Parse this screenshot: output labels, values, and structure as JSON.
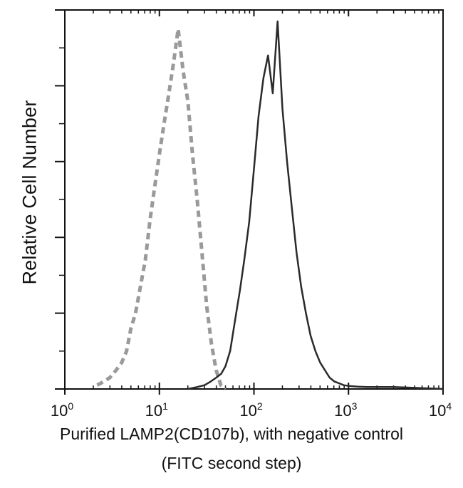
{
  "chart_data": {
    "type": "line",
    "title": "",
    "xlabel_line1": "Purified LAMP2(CD107b), with negative control",
    "xlabel_line2": "(FITC second step)",
    "ylabel": "Relative Cell Number",
    "xscale": "log",
    "xlim": [
      1,
      10000
    ],
    "ylim": [
      0,
      100
    ],
    "grid": false,
    "legend": "none",
    "x_ticks": [
      {
        "base": "10",
        "exp": "0",
        "value": 1
      },
      {
        "base": "10",
        "exp": "1",
        "value": 10
      },
      {
        "base": "10",
        "exp": "2",
        "value": 100
      },
      {
        "base": "10",
        "exp": "3",
        "value": 1000
      },
      {
        "base": "10",
        "exp": "4",
        "value": 10000
      }
    ],
    "y_major_ticks": [
      0,
      20,
      40,
      60,
      80,
      100
    ],
    "series": [
      {
        "style": "dashed",
        "color": "#9a9a9a",
        "x": [
          2.2,
          2.6,
          3.0,
          3.5,
          4.0,
          4.5,
          5.0,
          5.6,
          6.3,
          7.1,
          8.0,
          9.0,
          10.0,
          11.2,
          12.6,
          14.1,
          15.8,
          17.8,
          20.0,
          22.4,
          25.1,
          28.2,
          31.6,
          35.5,
          39.8,
          44.7,
          50.1
        ],
        "y": [
          1,
          2,
          3,
          5,
          7,
          10,
          16,
          20,
          27,
          34,
          45,
          54,
          62,
          70,
          78,
          86,
          95,
          84,
          76,
          62,
          50,
          36,
          22,
          12,
          5,
          1,
          0
        ]
      },
      {
        "style": "solid",
        "color": "#2a2a2a",
        "x": [
          20,
          25,
          30,
          35,
          40,
          45,
          50,
          56,
          63,
          71,
          79,
          89,
          100,
          112,
          126,
          141,
          158,
          178,
          200,
          224,
          251,
          282,
          316,
          355,
          398,
          447,
          501,
          562,
          631,
          708,
          794,
          891,
          1000,
          1260,
          1585,
          2000,
          3000,
          5000,
          10000
        ],
        "y": [
          0,
          0.5,
          1,
          2,
          3,
          4,
          6,
          10,
          18,
          26,
          34,
          44,
          58,
          72,
          82,
          88,
          78,
          97,
          74,
          60,
          48,
          36,
          27,
          20,
          14,
          10,
          7,
          5,
          3,
          2,
          1.5,
          1,
          0.8,
          0.6,
          0.5,
          0.5,
          0.5,
          0.3,
          0
        ]
      }
    ]
  }
}
